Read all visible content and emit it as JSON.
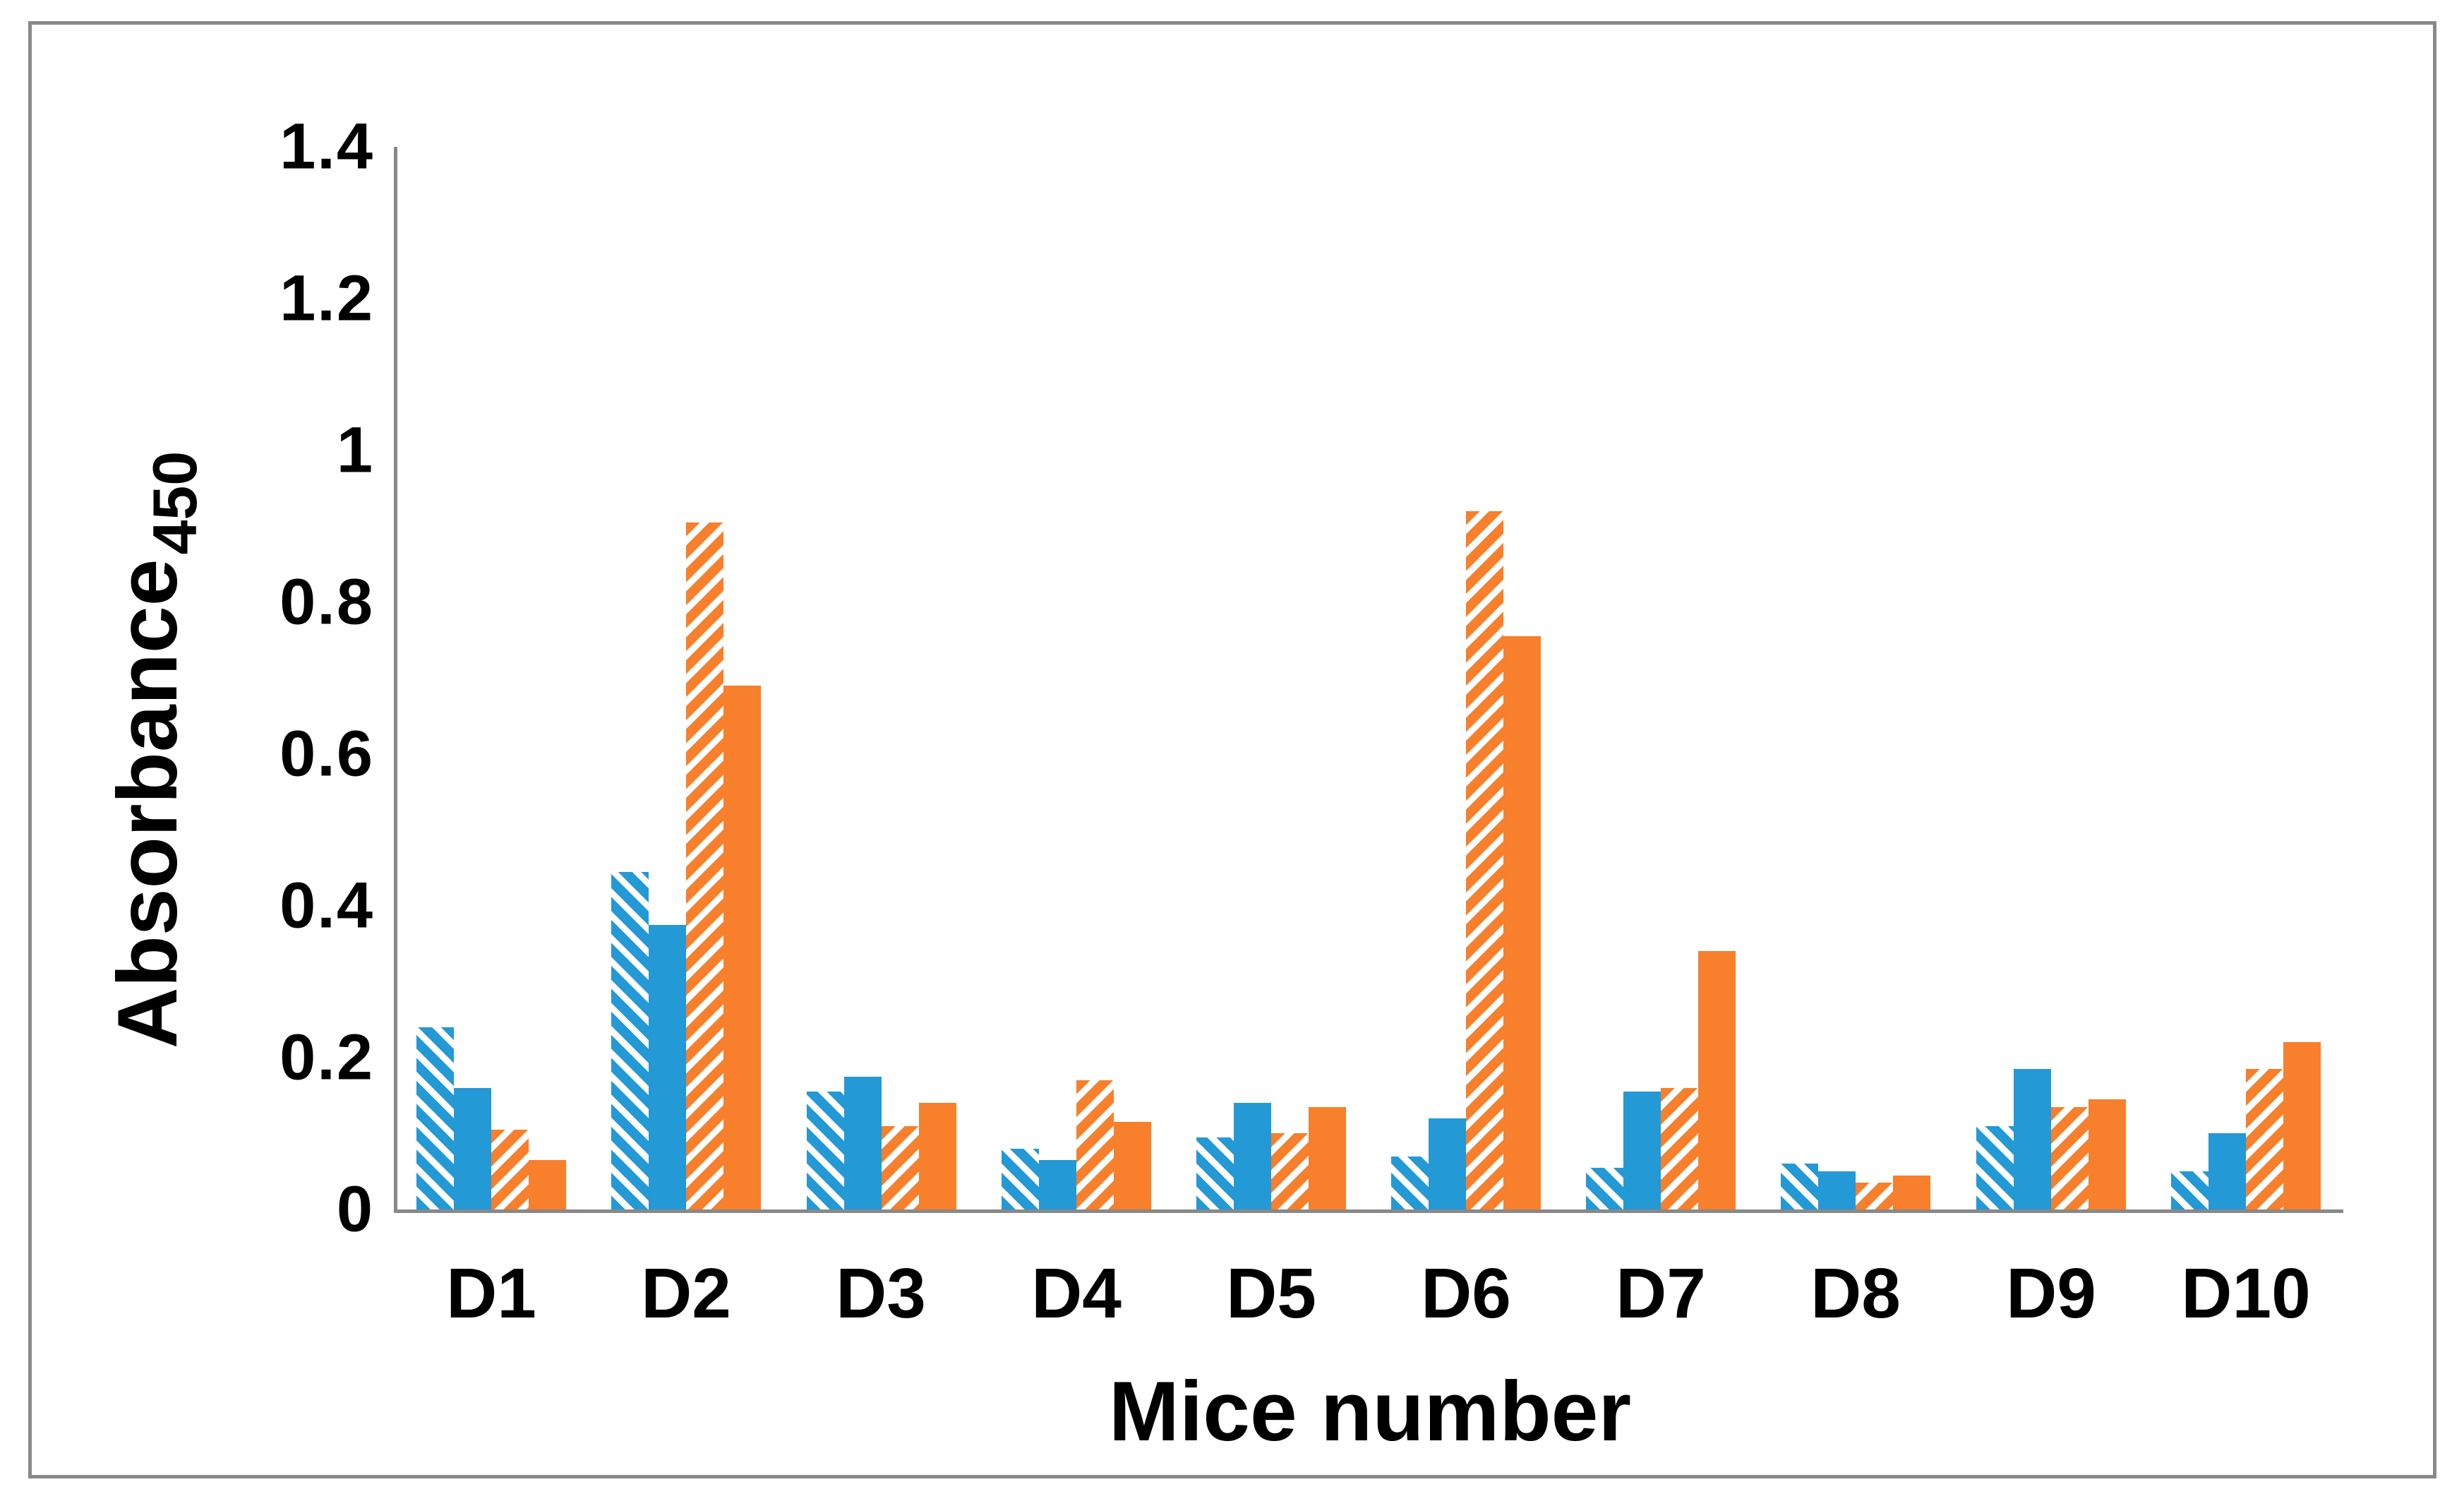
{
  "chart_data": {
    "type": "bar",
    "title": "",
    "xlabel": "Mice number",
    "ylabel": "Absorbance",
    "ylabel_subscript": "450",
    "categories": [
      "D1",
      "D2",
      "D3",
      "D4",
      "D5",
      "D6",
      "D7",
      "D8",
      "D9",
      "D10"
    ],
    "series": [
      {
        "name": "blue-hatched",
        "color": "#2399D6",
        "pattern": "diagonal-stripes",
        "values": [
          0.24,
          0.445,
          0.155,
          0.08,
          0.095,
          0.07,
          0.055,
          0.06,
          0.11,
          0.05
        ]
      },
      {
        "name": "blue-solid",
        "color": "#2399D6",
        "pattern": "solid",
        "values": [
          0.16,
          0.375,
          0.175,
          0.065,
          0.14,
          0.12,
          0.155,
          0.05,
          0.185,
          0.1
        ]
      },
      {
        "name": "orange-hatched",
        "color": "#F87F2B",
        "pattern": "diagonal-stripes",
        "values": [
          0.105,
          0.905,
          0.11,
          0.17,
          0.1,
          0.92,
          0.16,
          0.035,
          0.135,
          0.185
        ]
      },
      {
        "name": "orange-solid",
        "color": "#F87F2B",
        "pattern": "solid",
        "values": [
          0.065,
          0.69,
          0.14,
          0.115,
          0.135,
          0.755,
          0.34,
          0.045,
          0.145,
          0.22
        ]
      }
    ],
    "ylim": [
      0,
      1.4
    ],
    "yticks": [
      0,
      0.2,
      0.4,
      0.6,
      0.8,
      1,
      1.2,
      1.4
    ],
    "ytick_labels": [
      "0",
      "0.2",
      "0.4",
      "0.6",
      "0.8",
      "1",
      "1.2",
      "1.4"
    ],
    "grid": false,
    "legend_position": "none",
    "axis_color": "#898989",
    "text_color": "#000000"
  }
}
